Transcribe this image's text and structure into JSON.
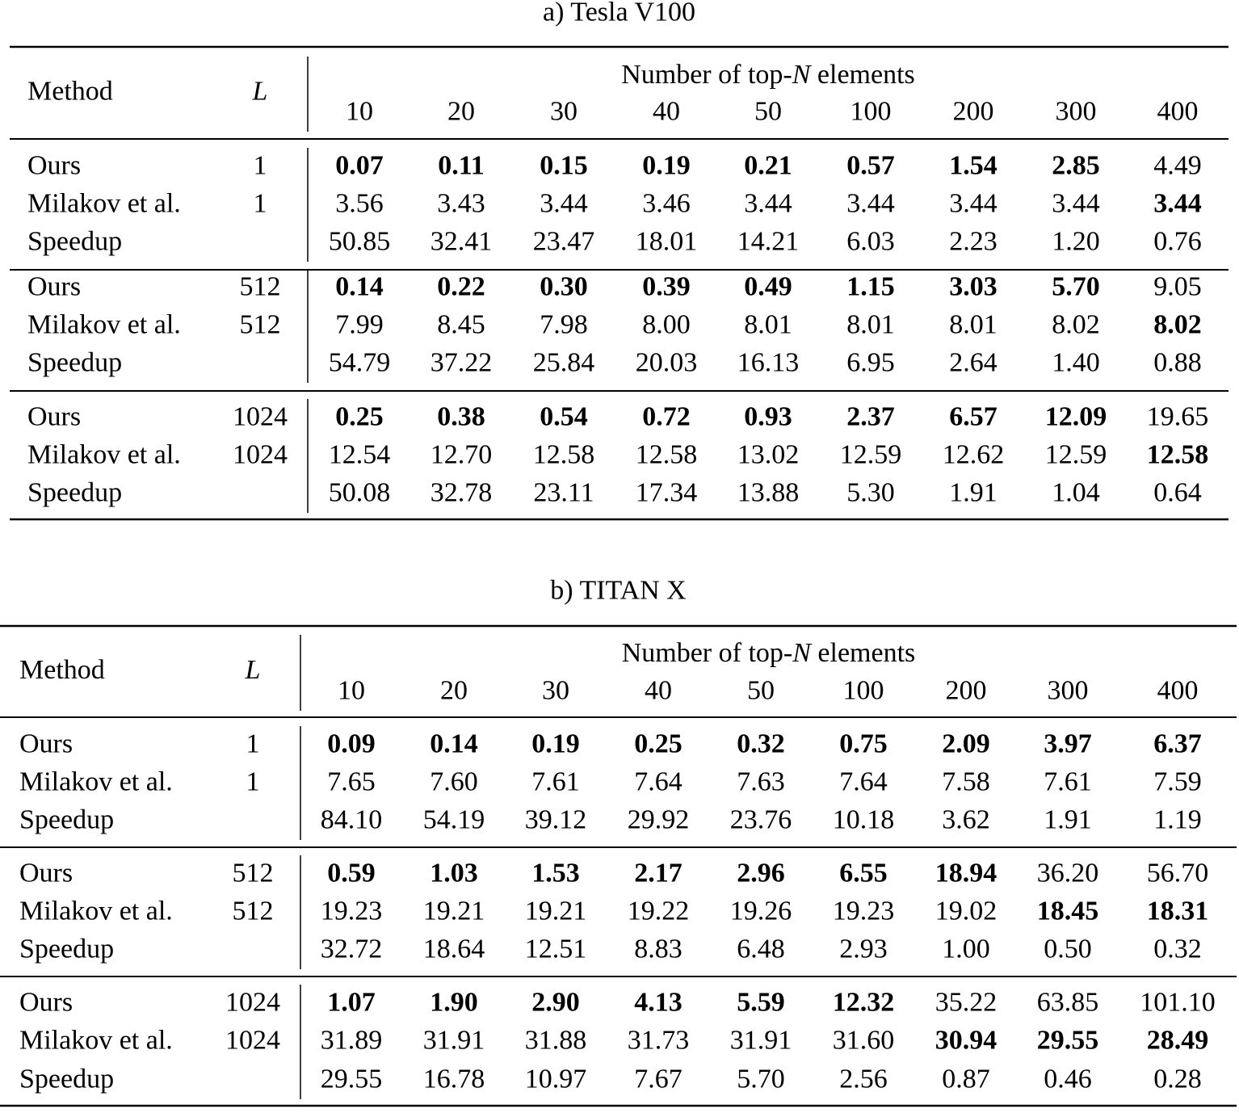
{
  "tables": [
    {
      "title": "a) Tesla V100",
      "header": {
        "method": "Method",
        "L": "L",
        "group": {
          "pre": "Number of top-",
          "var": "N",
          "post": " elements"
        },
        "columns": [
          "10",
          "20",
          "30",
          "40",
          "50",
          "100",
          "200",
          "300",
          "400"
        ]
      },
      "groups": [
        [
          {
            "method": "Ours",
            "L": "1",
            "values": [
              "0.07",
              "0.11",
              "0.15",
              "0.19",
              "0.21",
              "0.57",
              "1.54",
              "2.85",
              "4.49"
            ],
            "bold": [
              0,
              1,
              2,
              3,
              4,
              5,
              6,
              7
            ]
          },
          {
            "method": "Milakov et al.",
            "L": "1",
            "values": [
              "3.56",
              "3.43",
              "3.44",
              "3.46",
              "3.44",
              "3.44",
              "3.44",
              "3.44",
              "3.44"
            ],
            "bold": [
              8
            ]
          },
          {
            "method": "Speedup",
            "values": [
              "50.85",
              "32.41",
              "23.47",
              "18.01",
              "14.21",
              "6.03",
              "2.23",
              "1.20",
              "0.76"
            ],
            "bold": []
          }
        ],
        [
          {
            "method": "Ours",
            "L": "512",
            "values": [
              "0.14",
              "0.22",
              "0.30",
              "0.39",
              "0.49",
              "1.15",
              "3.03",
              "5.70",
              "9.05"
            ],
            "bold": [
              0,
              1,
              2,
              3,
              4,
              5,
              6,
              7
            ]
          },
          {
            "method": "Milakov et al.",
            "L": "512",
            "values": [
              "7.99",
              "8.45",
              "7.98",
              "8.00",
              "8.01",
              "8.01",
              "8.01",
              "8.02",
              "8.02"
            ],
            "bold": [
              8
            ]
          },
          {
            "method": "Speedup",
            "values": [
              "54.79",
              "37.22",
              "25.84",
              "20.03",
              "16.13",
              "6.95",
              "2.64",
              "1.40",
              "0.88"
            ],
            "bold": []
          }
        ],
        [
          {
            "method": "Ours",
            "L": "1024",
            "values": [
              "0.25",
              "0.38",
              "0.54",
              "0.72",
              "0.93",
              "2.37",
              "6.57",
              "12.09",
              "19.65"
            ],
            "bold": [
              0,
              1,
              2,
              3,
              4,
              5,
              6,
              7
            ]
          },
          {
            "method": "Milakov et al.",
            "L": "1024",
            "values": [
              "12.54",
              "12.70",
              "12.58",
              "12.58",
              "13.02",
              "12.59",
              "12.62",
              "12.59",
              "12.58"
            ],
            "bold": [
              8
            ]
          },
          {
            "method": "Speedup",
            "values": [
              "50.08",
              "32.78",
              "23.11",
              "17.34",
              "13.88",
              "5.30",
              "1.91",
              "1.04",
              "0.64"
            ],
            "bold": []
          }
        ]
      ]
    },
    {
      "title": "b) TITAN X",
      "header": {
        "method": "Method",
        "L": "L",
        "group": {
          "pre": "Number of top-",
          "var": "N",
          "post": " elements"
        },
        "columns": [
          "10",
          "20",
          "30",
          "40",
          "50",
          "100",
          "200",
          "300",
          "400"
        ]
      },
      "groups": [
        [
          {
            "method": "Ours",
            "L": "1",
            "values": [
              "0.09",
              "0.14",
              "0.19",
              "0.25",
              "0.32",
              "0.75",
              "2.09",
              "3.97",
              "6.37"
            ],
            "bold": [
              0,
              1,
              2,
              3,
              4,
              5,
              6,
              7,
              8
            ]
          },
          {
            "method": "Milakov et al.",
            "L": "1",
            "values": [
              "7.65",
              "7.60",
              "7.61",
              "7.64",
              "7.63",
              "7.64",
              "7.58",
              "7.61",
              "7.59"
            ],
            "bold": []
          },
          {
            "method": "Speedup",
            "values": [
              "84.10",
              "54.19",
              "39.12",
              "29.92",
              "23.76",
              "10.18",
              "3.62",
              "1.91",
              "1.19"
            ],
            "bold": []
          }
        ],
        [
          {
            "method": "Ours",
            "L": "512",
            "values": [
              "0.59",
              "1.03",
              "1.53",
              "2.17",
              "2.96",
              "6.55",
              "18.94",
              "36.20",
              "56.70"
            ],
            "bold": [
              0,
              1,
              2,
              3,
              4,
              5,
              6
            ]
          },
          {
            "method": "Milakov et al.",
            "L": "512",
            "values": [
              "19.23",
              "19.21",
              "19.21",
              "19.22",
              "19.26",
              "19.23",
              "19.02",
              "18.45",
              "18.31"
            ],
            "bold": [
              7,
              8
            ]
          },
          {
            "method": "Speedup",
            "values": [
              "32.72",
              "18.64",
              "12.51",
              "8.83",
              "6.48",
              "2.93",
              "1.00",
              "0.50",
              "0.32"
            ],
            "bold": []
          }
        ],
        [
          {
            "method": "Ours",
            "L": "1024",
            "values": [
              "1.07",
              "1.90",
              "2.90",
              "4.13",
              "5.59",
              "12.32",
              "35.22",
              "63.85",
              "101.10"
            ],
            "bold": [
              0,
              1,
              2,
              3,
              4,
              5
            ]
          },
          {
            "method": "Milakov et al.",
            "L": "1024",
            "values": [
              "31.89",
              "31.91",
              "31.88",
              "31.73",
              "31.91",
              "31.60",
              "30.94",
              "29.55",
              "28.49"
            ],
            "bold": [
              6,
              7,
              8
            ]
          },
          {
            "method": "Speedup",
            "values": [
              "29.55",
              "16.78",
              "10.97",
              "7.67",
              "5.70",
              "2.56",
              "0.87",
              "0.46",
              "0.28"
            ],
            "bold": []
          }
        ]
      ]
    }
  ]
}
